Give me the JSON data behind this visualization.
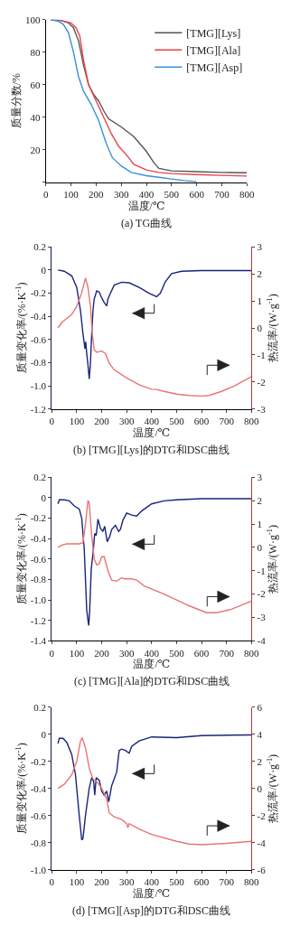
{
  "chart_data": [
    {
      "type": "line",
      "title": "(a) TG曲线",
      "xlabel": "温度/℃",
      "ylabel": "质量分数/%",
      "legend": "top right",
      "grid": false,
      "line_style": "solid",
      "xlim": [
        0,
        800
      ],
      "xticks": [
        0,
        100,
        200,
        300,
        400,
        500,
        600,
        700,
        800
      ],
      "ylim": [
        0,
        100
      ],
      "yticks": [
        {
          "value": 0,
          "label": null
        },
        20,
        40,
        60,
        80,
        100
      ],
      "series": [
        {
          "name": "[TMG][Lys]",
          "color": "#555555",
          "x": [
            20,
            60,
            90,
            110,
            130,
            150,
            170,
            190,
            210,
            230,
            250,
            300,
            350,
            400,
            430,
            450,
            500,
            600,
            700,
            800
          ],
          "values": [
            100,
            99.5,
            98,
            95,
            87,
            72,
            60,
            54,
            50,
            44,
            39,
            34,
            28,
            19,
            12,
            8.5,
            7,
            6.5,
            6,
            5.8
          ]
        },
        {
          "name": "[TMG][Ala]",
          "color": "#e8424a",
          "x": [
            20,
            60,
            100,
            120,
            135,
            150,
            170,
            200,
            230,
            260,
            290,
            320,
            350,
            400,
            450,
            500,
            600,
            700,
            800
          ],
          "values": [
            100,
            99.5,
            98,
            95,
            90,
            75,
            60,
            50,
            40,
            30,
            22,
            17,
            11,
            7.5,
            6,
            5.3,
            4.7,
            4.2,
            3.8
          ]
        },
        {
          "name": "[TMG][Asp]",
          "color": "#3a8fd8",
          "x": [
            20,
            50,
            70,
            90,
            110,
            130,
            150,
            180,
            210,
            240,
            265,
            300,
            340,
            400,
            450,
            500,
            550,
            600
          ],
          "values": [
            100,
            99,
            97,
            92,
            80,
            65,
            56,
            48,
            38,
            24,
            15,
            10,
            6,
            4,
            3,
            2,
            1,
            0.3
          ]
        }
      ]
    },
    {
      "type": "line",
      "title": "(b) [TMG][Lys]的DTG和DSC曲线",
      "xlabel": "温度/℃",
      "ylabel": "质量变化率/(%·K$^{-1}$)",
      "y2label": "热流率/(W·g$^{-1}$)",
      "grid": false,
      "line_style": "solid",
      "xlim": [
        0,
        800
      ],
      "xticks": [
        0,
        100,
        200,
        300,
        400,
        500,
        600,
        700,
        800
      ],
      "ylim": [
        -1.2,
        0.2
      ],
      "yticks": [
        {
          "value": -1.2,
          "label": "-1.2"
        },
        {
          "value": -1.0,
          "label": "-1.0"
        },
        -0.8,
        -0.6,
        -0.4,
        -0.2,
        0,
        0.2
      ],
      "y2lim": [
        -3,
        3
      ],
      "y2ticks": [
        -3,
        -2,
        -1,
        0,
        1,
        2,
        3
      ],
      "series": [
        {
          "color": "#1a237e",
          "x": [
            25,
            50,
            80,
            100,
            115,
            125,
            133,
            136,
            140,
            145,
            150,
            155,
            160,
            165,
            170,
            180,
            190,
            200,
            210,
            220,
            225,
            235,
            250,
            280,
            310,
            350,
            390,
            420,
            435,
            455,
            480,
            520,
            600,
            800
          ],
          "values": [
            0,
            -0.01,
            -0.05,
            -0.15,
            -0.35,
            -0.55,
            -0.68,
            -0.62,
            -0.72,
            -0.82,
            -0.94,
            -0.8,
            -0.55,
            -0.35,
            -0.25,
            -0.18,
            -0.19,
            -0.24,
            -0.28,
            -0.31,
            -0.25,
            -0.2,
            -0.13,
            -0.105,
            -0.11,
            -0.15,
            -0.2,
            -0.23,
            -0.2,
            -0.1,
            -0.03,
            -0.01,
            -0.005,
            -0.005
          ]
        },
        {
          "color": "#e87575",
          "axis": "y2",
          "x": [
            25,
            40,
            60,
            80,
            100,
            120,
            135,
            145,
            155,
            162,
            170,
            180,
            200,
            215,
            230,
            250,
            300,
            350,
            400,
            420,
            450,
            500,
            550,
            600,
            630,
            680,
            730,
            800
          ],
          "values": [
            0,
            0.2,
            0.35,
            0.5,
            0.8,
            1.3,
            1.85,
            1.5,
            0.8,
            -0.2,
            -0.8,
            -0.9,
            -0.85,
            -0.95,
            -1.3,
            -1.55,
            -1.85,
            -2.1,
            -2.27,
            -2.28,
            -2.35,
            -2.45,
            -2.5,
            -2.52,
            -2.5,
            -2.35,
            -2.15,
            -1.8
          ]
        }
      ]
    },
    {
      "type": "line",
      "title": "(c) [TMG][Ala]的DTG和DSC曲线",
      "xlabel": "温度/℃",
      "ylabel": "质量变化率/(%·K$^{-1}$)",
      "y2label": "热流率/(W·g$^{-1}$)",
      "grid": false,
      "line_style": "solid",
      "xlim": [
        0,
        800
      ],
      "xticks": [
        0,
        100,
        200,
        300,
        400,
        500,
        600,
        700,
        800
      ],
      "ylim": [
        -1.4,
        0.2
      ],
      "yticks": [
        {
          "value": -1.4,
          "label": "-1.4"
        },
        {
          "value": -1.2,
          "label": "-1.2"
        },
        {
          "value": -1.0,
          "label": "-1.0"
        },
        -0.8,
        -0.6,
        -0.4,
        -0.2,
        0,
        0.2
      ],
      "y2lim": [
        -4,
        3
      ],
      "y2ticks": [
        -4,
        -3,
        -2,
        -1,
        0,
        1,
        2,
        3
      ],
      "series": [
        {
          "color": "#1a237e",
          "x": [
            25,
            30,
            50,
            70,
            90,
            110,
            120,
            130,
            140,
            145,
            148,
            152,
            158,
            165,
            172,
            178,
            185,
            195,
            205,
            212,
            222,
            232,
            240,
            255,
            268,
            275,
            285,
            300,
            320,
            340,
            360,
            400,
            450,
            500,
            600,
            800
          ],
          "values": [
            -0.06,
            -0.02,
            -0.02,
            -0.03,
            -0.08,
            -0.11,
            -0.2,
            -0.5,
            -1.1,
            -1.2,
            -1.25,
            -1.1,
            -0.7,
            -0.55,
            -0.35,
            -0.37,
            -0.21,
            -0.3,
            -0.33,
            -0.28,
            -0.43,
            -0.38,
            -0.31,
            -0.27,
            -0.33,
            -0.31,
            -0.22,
            -0.15,
            -0.17,
            -0.18,
            -0.13,
            -0.06,
            -0.03,
            -0.02,
            -0.01,
            -0.01
          ]
        },
        {
          "color": "#e87575",
          "axis": "y2",
          "x": [
            25,
            40,
            60,
            80,
            110,
            125,
            135,
            145,
            150,
            160,
            170,
            180,
            190,
            200,
            210,
            225,
            240,
            260,
            280,
            290,
            320,
            340,
            370,
            450,
            550,
            620,
            660,
            720,
            800
          ],
          "values": [
            0,
            0.1,
            0.15,
            0.15,
            0.15,
            0.2,
            1,
            2,
            1.9,
            0.5,
            -0.5,
            -0.75,
            -0.7,
            -0.4,
            -0.4,
            -1.0,
            -1.4,
            -1.45,
            -1.3,
            -1.35,
            -1.35,
            -1.4,
            -1.65,
            -2.0,
            -2.5,
            -2.8,
            -2.8,
            -2.65,
            -2.3
          ]
        }
      ]
    },
    {
      "type": "line",
      "title": "(d) [TMG][Asp]的DTG和DSC曲线",
      "xlabel": "温度/℃",
      "ylabel": "质量变化率/(%·K$^{-1}$)",
      "y2label": "热流率/(W·g$^{-1}$)",
      "grid": false,
      "line_style": "solid",
      "xlim": [
        0,
        800
      ],
      "xticks": [
        0,
        100,
        200,
        300,
        400,
        500,
        600,
        700,
        800
      ],
      "ylim": [
        -1.0,
        0.2
      ],
      "yticks": [
        {
          "value": -1.0,
          "label": "-1.0"
        },
        -0.8,
        -0.6,
        -0.4,
        -0.2,
        0,
        0.2
      ],
      "y2lim": [
        -6,
        6
      ],
      "y2ticks": [
        -6,
        -4,
        -2,
        0,
        2,
        4,
        6
      ],
      "series": [
        {
          "color": "#1a237e",
          "x": [
            25,
            30,
            45,
            60,
            80,
            95,
            110,
            120,
            125,
            135,
            150,
            160,
            168,
            172,
            178,
            190,
            200,
            210,
            220,
            228,
            240,
            260,
            270,
            280,
            295,
            310,
            320,
            350,
            400,
            500,
            600,
            800
          ],
          "values": [
            -0.07,
            -0.03,
            -0.03,
            -0.06,
            -0.15,
            -0.3,
            -0.6,
            -0.78,
            -0.77,
            -0.6,
            -0.4,
            -0.32,
            -0.35,
            -0.45,
            -0.32,
            -0.34,
            -0.42,
            -0.45,
            -0.42,
            -0.5,
            -0.38,
            -0.28,
            -0.12,
            -0.11,
            -0.12,
            -0.14,
            -0.09,
            -0.05,
            -0.02,
            -0.025,
            -0.01,
            -0.005
          ]
        },
        {
          "color": "#e87575",
          "axis": "y2",
          "x": [
            25,
            50,
            80,
            100,
            115,
            122,
            135,
            150,
            165,
            180,
            200,
            220,
            230,
            250,
            280,
            300,
            305,
            310,
            350,
            400,
            500,
            550,
            600,
            700,
            800
          ],
          "values": [
            0,
            0.3,
            1,
            2,
            3.5,
            3.75,
            3,
            1.5,
            0.7,
            0.5,
            0,
            -0.8,
            -1.8,
            -2.1,
            -2.3,
            -2.6,
            -2.9,
            -2.6,
            -3.0,
            -3.4,
            -3.9,
            -4.1,
            -4.15,
            -4.05,
            -3.9
          ]
        }
      ]
    }
  ]
}
